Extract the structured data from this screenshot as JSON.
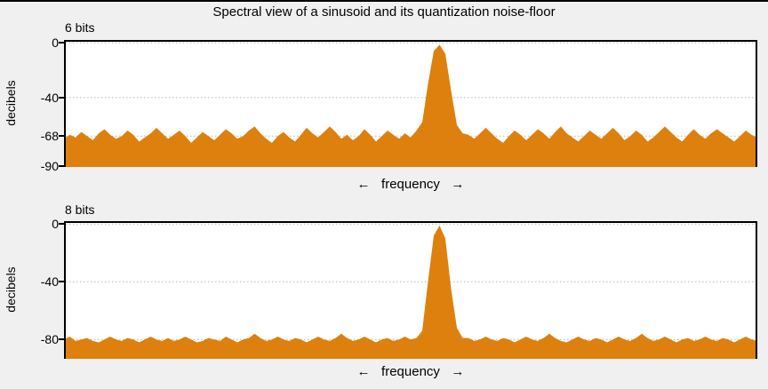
{
  "window": {
    "background": "#f0f0f0",
    "top_edge_color": "#000000"
  },
  "title": "Spectral view of a sinusoid and its quantization noise-floor",
  "chart_data": [
    {
      "type": "area",
      "subtitle": "6 bits",
      "ylabel": "decibels",
      "xlabel": "←   frequency   →",
      "ylim": [
        -90.5,
        2
      ],
      "yticks": [
        0,
        -40,
        -68,
        -90
      ],
      "ytick_labels": [
        "0",
        "-40",
        "-68",
        "-90"
      ],
      "grid": "horizontal-dotted",
      "grid_color": "#b3b3b3",
      "fill_color": "#de800d",
      "noise_floor_db": -68,
      "peak_db": -1.5,
      "values": [
        -70,
        -67,
        -69,
        -65,
        -68,
        -71,
        -66,
        -63,
        -67,
        -70,
        -68,
        -64,
        -67,
        -72,
        -69,
        -66,
        -62,
        -66,
        -70,
        -67,
        -64,
        -68,
        -73,
        -69,
        -65,
        -68,
        -71,
        -67,
        -63,
        -66,
        -70,
        -68,
        -64,
        -61,
        -66,
        -70,
        -73,
        -68,
        -65,
        -69,
        -72,
        -67,
        -62,
        -66,
        -69,
        -65,
        -61,
        -65,
        -70,
        -67,
        -71,
        -68,
        -63,
        -67,
        -72,
        -68,
        -64,
        -67,
        -70,
        -66,
        -69,
        -64,
        -58,
        -30,
        -6,
        -1.5,
        -8,
        -35,
        -60,
        -66,
        -67,
        -70,
        -66,
        -62,
        -66,
        -70,
        -73,
        -68,
        -64,
        -67,
        -71,
        -67,
        -63,
        -66,
        -70,
        -65,
        -61,
        -66,
        -69,
        -72,
        -68,
        -64,
        -67,
        -70,
        -66,
        -62,
        -66,
        -71,
        -68,
        -64,
        -67,
        -72,
        -69,
        -65,
        -61,
        -65,
        -69,
        -72,
        -67,
        -63,
        -67,
        -70,
        -66,
        -63,
        -66,
        -69,
        -72,
        -68,
        -64,
        -67,
        -69
      ]
    },
    {
      "type": "area",
      "subtitle": "8 bits",
      "ylabel": "decibels",
      "xlabel": "←   frequency   →",
      "ylim": [
        -93.4,
        2
      ],
      "yticks": [
        0,
        -40,
        -80
      ],
      "ytick_labels": [
        "0",
        "-40",
        "-80"
      ],
      "grid": "horizontal-dotted",
      "grid_color": "#b3b3b3",
      "fill_color": "#de800d",
      "noise_floor_db": -80,
      "peak_db": -1,
      "values": [
        -80,
        -78,
        -81,
        -80,
        -79,
        -81,
        -82,
        -80,
        -78,
        -80,
        -81,
        -79,
        -80,
        -82,
        -80,
        -78,
        -80,
        -81,
        -79,
        -81,
        -80,
        -78,
        -80,
        -82,
        -81,
        -79,
        -80,
        -81,
        -78,
        -80,
        -82,
        -80,
        -79,
        -76,
        -79,
        -81,
        -80,
        -78,
        -80,
        -81,
        -79,
        -80,
        -82,
        -80,
        -78,
        -80,
        -81,
        -79,
        -76,
        -79,
        -81,
        -80,
        -78,
        -80,
        -82,
        -80,
        -79,
        -81,
        -80,
        -78,
        -80,
        -79,
        -74,
        -40,
        -8,
        -1,
        -10,
        -45,
        -72,
        -79,
        -79,
        -81,
        -80,
        -78,
        -80,
        -81,
        -79,
        -80,
        -82,
        -80,
        -78,
        -80,
        -81,
        -79,
        -76,
        -79,
        -81,
        -82,
        -80,
        -78,
        -80,
        -81,
        -79,
        -80,
        -82,
        -80,
        -78,
        -80,
        -81,
        -79,
        -76,
        -79,
        -81,
        -80,
        -78,
        -80,
        -82,
        -80,
        -79,
        -81,
        -80,
        -78,
        -80,
        -81,
        -79,
        -80,
        -82,
        -80,
        -78,
        -80,
        -81
      ]
    }
  ]
}
